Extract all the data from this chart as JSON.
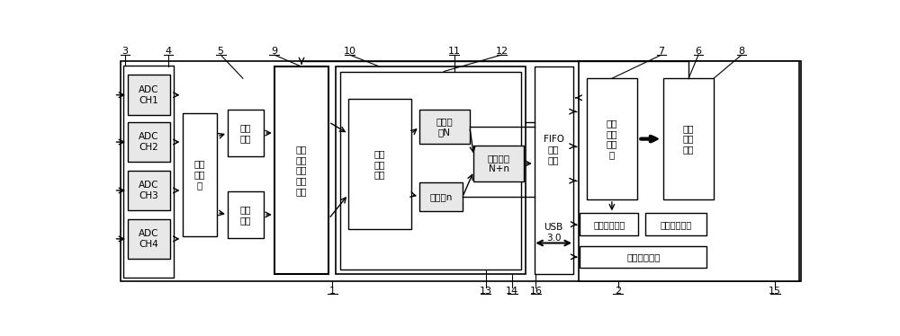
{
  "bg_color": "#ffffff",
  "line_color": "#000000",
  "box_fill": "#ffffff",
  "gray_fill": "#e8e8e8",
  "fig_width": 10.0,
  "fig_height": 3.74,
  "dpi": 100,
  "labels": {
    "adc_ch1": "ADC\nCH1",
    "adc_ch2": "ADC\nCH2",
    "adc_ch3": "ADC\nCH3",
    "adc_ch4": "ADC\nCH4",
    "chafen": "差分\n预处\n理",
    "junzhi1": "均值\n滤波",
    "junzhi2": "均值\n滤波",
    "ortho": "正交\n信号\n实时\n误差\n补偿",
    "realtime": "实时\n相位\n计算",
    "zhengzhouqi": "整周期\n数N",
    "xifenshu": "细分数n",
    "xiangwei": "相位变化\nN+n",
    "fifo": "FIFO\n数据\n缓存",
    "usb": "USB\n3.0",
    "shuju": "数据\n筛选\n预处\n理",
    "buchang": "补偿\n参数\n计算",
    "xiuzheng": "修正效果显示",
    "shujucunchu": "数据存储设置",
    "celiang": "测量结果显示"
  }
}
